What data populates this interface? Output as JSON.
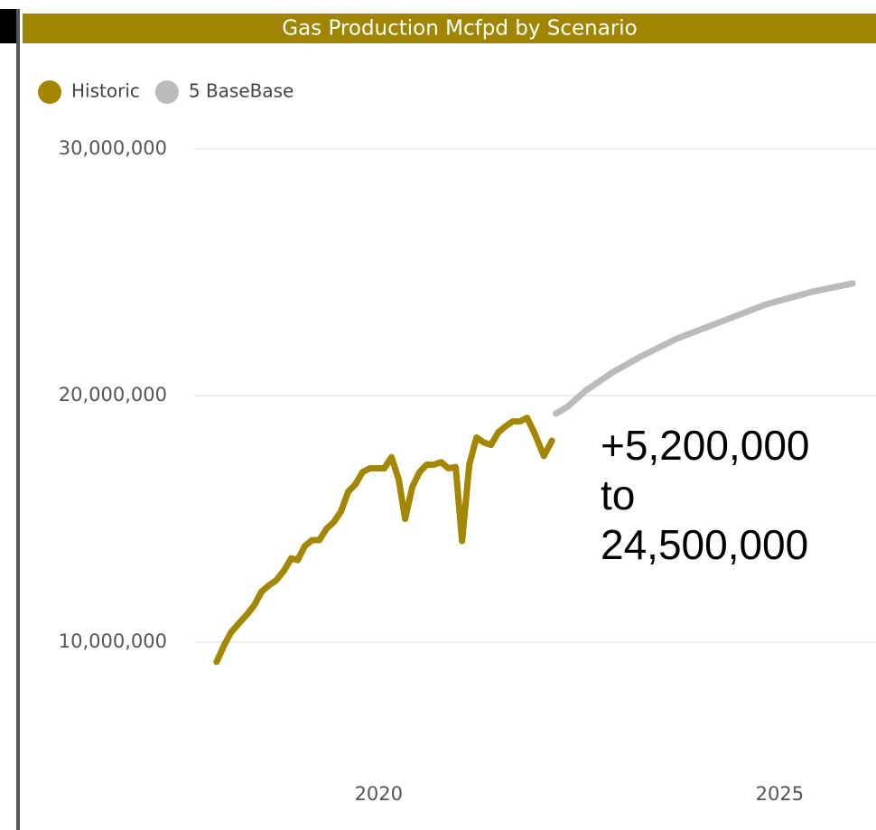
{
  "chart_data": {
    "type": "line",
    "title": "Gas Production Mcfpd by Scenario",
    "grid": true,
    "xlim": [
      2017.7,
      2026.2
    ],
    "xticks": [
      2020,
      2025
    ],
    "ylim": [
      4800000,
      30000000
    ],
    "yticks": [
      {
        "value": 10000000,
        "label": "10,000,000"
      },
      {
        "value": 20000000,
        "label": "20,000,000"
      },
      {
        "value": 30000000,
        "label": "30,000,000"
      }
    ],
    "series": [
      {
        "name": "Historic",
        "color": "#a38700",
        "x": [
          2017.98,
          2018.07,
          2018.16,
          2018.26,
          2018.36,
          2018.45,
          2018.54,
          2018.63,
          2018.72,
          2018.82,
          2018.91,
          2018.99,
          2019.08,
          2019.17,
          2019.26,
          2019.35,
          2019.44,
          2019.53,
          2019.62,
          2019.71,
          2019.8,
          2019.89,
          2019.98,
          2020.07,
          2020.16,
          2020.25,
          2020.33,
          2020.42,
          2020.51,
          2020.6,
          2020.69,
          2020.78,
          2020.87,
          2020.96,
          2021.04,
          2021.13,
          2021.22,
          2021.31,
          2021.4,
          2021.49,
          2021.58,
          2021.67,
          2021.76,
          2021.85,
          2021.94,
          2022.06,
          2022.16
        ],
        "values": [
          9200000,
          9850000,
          10400000,
          10770000,
          11130000,
          11500000,
          12050000,
          12300000,
          12500000,
          12900000,
          13400000,
          13330000,
          13900000,
          14140000,
          14140000,
          14600000,
          14870000,
          15300000,
          16100000,
          16400000,
          16900000,
          17050000,
          17050000,
          17050000,
          17500000,
          16600000,
          15000000,
          16300000,
          16900000,
          17200000,
          17200000,
          17300000,
          17050000,
          17100000,
          14100000,
          17200000,
          18300000,
          18100000,
          18000000,
          18500000,
          18750000,
          18950000,
          18950000,
          19100000,
          18500000,
          17550000,
          18170000
        ]
      },
      {
        "name": "5 BaseBase",
        "color": "#bbbbbb",
        "x": [
          2022.21,
          2022.36,
          2022.58,
          2022.92,
          2023.26,
          2023.71,
          2024.27,
          2024.83,
          2025.39,
          2025.91
        ],
        "values": [
          19270000,
          19560000,
          20200000,
          20950000,
          21570000,
          22300000,
          23000000,
          23700000,
          24200000,
          24550000
        ]
      }
    ],
    "annotation": [
      "+5,200,000",
      "to",
      "24,500,000"
    ]
  }
}
